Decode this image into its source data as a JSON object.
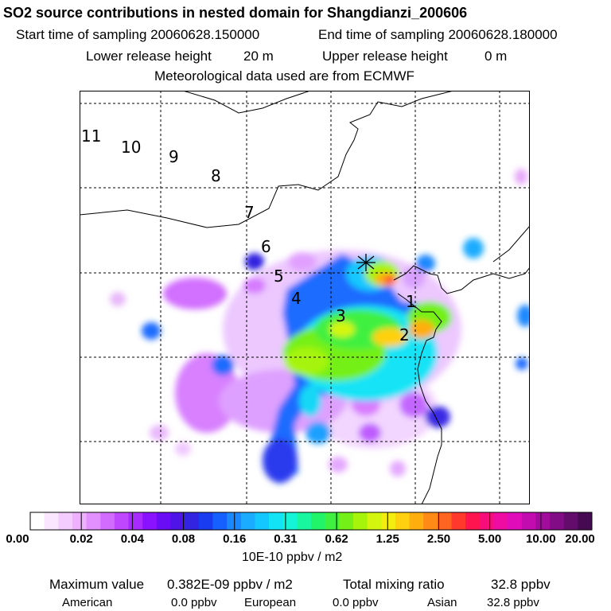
{
  "header": {
    "title": "SO2 source contributions in nested domain for Shangdianzi_200606",
    "start_label": "Start time of sampling 20060628.150000",
    "end_label": "End time of sampling 20060628.180000",
    "lower_label": "Lower release height",
    "lower_value": "20 m",
    "upper_label": "Upper release height",
    "upper_value": "0 m",
    "met_label": "Meteorological data used are from ECMWF"
  },
  "map": {
    "time_labels": [
      "11",
      "10",
      "9",
      "8",
      "7",
      "6",
      "5",
      "4",
      "3",
      "2",
      "1"
    ],
    "station_marker": "asterisk-icon",
    "grid": "dashed"
  },
  "colorbar": {
    "tick_labels": [
      "0.00",
      "0.02",
      "0.04",
      "0.08",
      "0.16",
      "0.31",
      "0.62",
      "1.25",
      "2.50",
      "5.00",
      "10.00",
      "20.00"
    ],
    "colors": [
      "#ffffff",
      "#fbe6ff",
      "#f5ccff",
      "#eeb0ff",
      "#e290ff",
      "#d26cff",
      "#bf48ff",
      "#a82aff",
      "#8a12ff",
      "#6a0cf5",
      "#4e14e8",
      "#3224e0",
      "#1a3cf0",
      "#1660ff",
      "#1a88ff",
      "#1cacff",
      "#14c8ff",
      "#12e4f6",
      "#14f4d6",
      "#18f6a0",
      "#22f46a",
      "#40f040",
      "#74f018",
      "#a6f40c",
      "#d4f60e",
      "#f4ee10",
      "#ffd010",
      "#ffae10",
      "#ff8a16",
      "#ff6420",
      "#ff3a2c",
      "#ff1450",
      "#f80e7a",
      "#ee0ca2",
      "#e00cba",
      "#c20cb0",
      "#a20c9c",
      "#820c86",
      "#640c6c",
      "#460a52"
    ],
    "unit": "10E-10 ppbv / m2"
  },
  "footer": {
    "max_label": "Maximum value",
    "max_value": "0.382E-09 ppbv / m2",
    "total_label": "Total mixing ratio",
    "total_value": "32.8 ppbv",
    "regions": [
      {
        "name": "American",
        "value": "0.0 ppbv"
      },
      {
        "name": "European",
        "value": "0.0 ppbv"
      },
      {
        "name": "Asian",
        "value": "32.8 ppbv"
      }
    ]
  }
}
